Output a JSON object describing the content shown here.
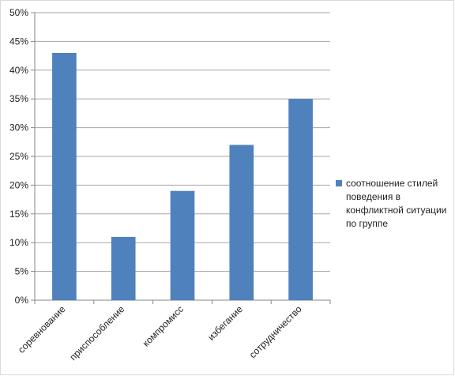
{
  "chart_data": {
    "type": "bar",
    "categories": [
      "соревнование",
      "приспособление",
      "компромисс",
      "избегание",
      "сотрудничество"
    ],
    "series": [
      {
        "name": "соотношение стилей поведения в конфликтной ситуации по группе",
        "values": [
          43,
          11,
          19,
          27,
          35
        ]
      }
    ],
    "ylim": [
      0,
      50
    ],
    "yticks": [
      "0%",
      "5%",
      "10%",
      "15%",
      "20%",
      "25%",
      "30%",
      "35%",
      "40%",
      "45%",
      "50%"
    ],
    "grid": true,
    "legend_position": "right",
    "legend_lines": [
      "соотношение стилей",
      "поведения в",
      "конфликтной ситуации",
      "по группе"
    ],
    "colors": {
      "bar": "#4f81bd",
      "grid": "#a6a6a6",
      "axis": "#868686"
    }
  }
}
